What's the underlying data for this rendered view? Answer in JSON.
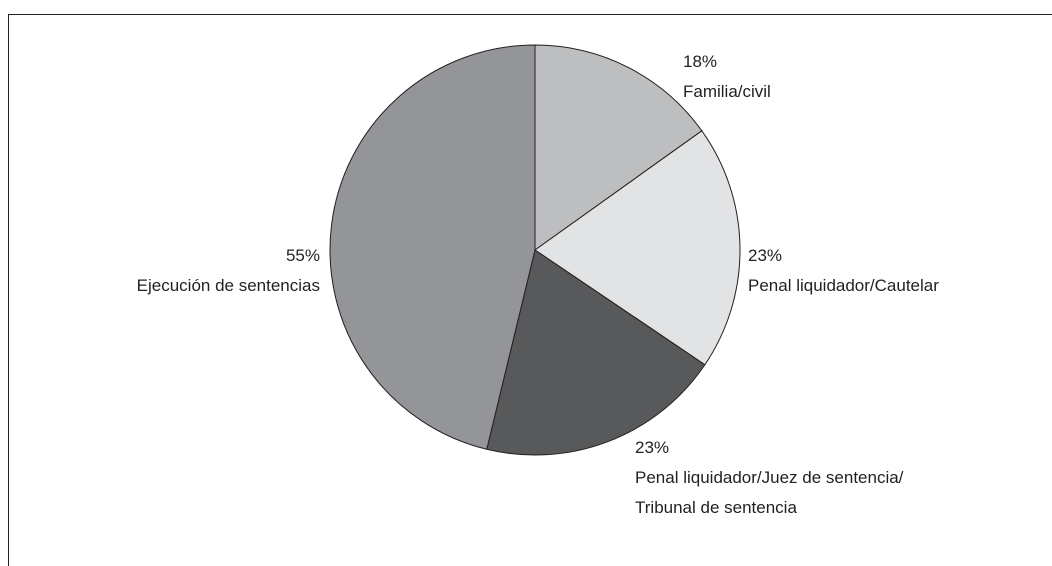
{
  "chart_data": {
    "type": "pie",
    "categories": [
      "Familia/civil",
      "Penal liquidador/Cautelar",
      "Penal liquidador/Juez de sentencia/\nTribunal de sentencia",
      "Ejecución de sentencias"
    ],
    "values": [
      18,
      23,
      23,
      55
    ],
    "value_labels": [
      "18%",
      "23%",
      "23%",
      "55%"
    ],
    "colors": [
      "#bdbec0",
      "#e2e3e4",
      "#58595b",
      "#939598"
    ]
  }
}
